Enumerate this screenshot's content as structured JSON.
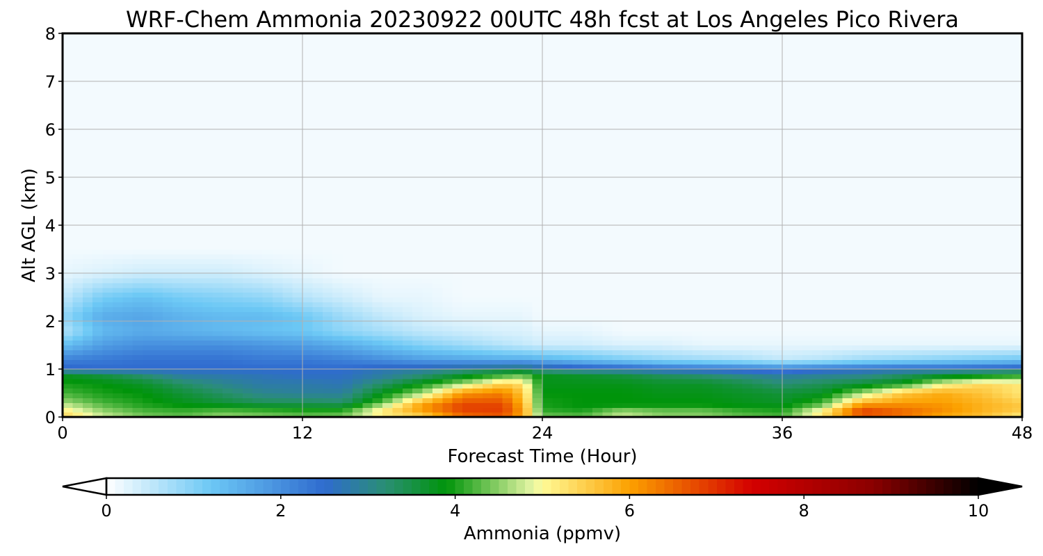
{
  "chart_data": {
    "type": "heatmap",
    "title": "WRF-Chem Ammonia  20230922 00UTC 48h fcst at Los Angeles Pico Rivera",
    "xlabel": "Forecast Time (Hour)",
    "ylabel": "Alt AGL (km)",
    "xlim": [
      0,
      48
    ],
    "ylim": [
      0,
      8
    ],
    "xticks": [
      0,
      12,
      24,
      36,
      48
    ],
    "yticks": [
      0,
      1,
      2,
      3,
      4,
      5,
      6,
      7,
      8
    ],
    "grid": true,
    "colorbar": {
      "label": "Ammonia  (ppmv)",
      "range": [
        0,
        10
      ],
      "ticks": [
        0,
        2,
        4,
        6,
        8,
        10
      ],
      "extend": "both",
      "stops": [
        {
          "v": 0.0,
          "c": "#ffffff"
        },
        {
          "v": 1.2,
          "c": "#6cc8f5"
        },
        {
          "v": 2.5,
          "c": "#2f6bcf"
        },
        {
          "v": 3.2,
          "c": "#2a8f74"
        },
        {
          "v": 3.9,
          "c": "#00940a"
        },
        {
          "v": 4.9,
          "c": "#e9f7a7"
        },
        {
          "v": 5.0,
          "c": "#fffa96"
        },
        {
          "v": 6.0,
          "c": "#fca100"
        },
        {
          "v": 7.4,
          "c": "#d40000"
        },
        {
          "v": 8.8,
          "c": "#8a0000"
        },
        {
          "v": 10.0,
          "c": "#000000"
        }
      ]
    },
    "hours": [
      0,
      2,
      4,
      6,
      8,
      10,
      12,
      14,
      16,
      18,
      20,
      22,
      23,
      24,
      26,
      28,
      30,
      32,
      34,
      36,
      38,
      40,
      42,
      44,
      46,
      48
    ],
    "altitudes_km": [
      0,
      0.1,
      0.2,
      0.3,
      0.5,
      0.7,
      0.85,
      1.0,
      1.2,
      1.5,
      1.8,
      2.1,
      2.5,
      3.0,
      3.5,
      8.0
    ],
    "values": [
      [
        5.5,
        4.8,
        4.4,
        4.3,
        4.5,
        4.4,
        4.3,
        4.4,
        5.1,
        5.4,
        6.4,
        6.6,
        5.9,
        4.4,
        4.3,
        4.5,
        4.3,
        4.3,
        4.2,
        4.2,
        5.0,
        6.5,
        6.4,
        5.9,
        5.6,
        5.1
      ],
      [
        5.2,
        4.6,
        4.3,
        4.2,
        4.4,
        4.3,
        4.2,
        4.2,
        5.2,
        5.8,
        6.7,
        6.8,
        6.0,
        4.2,
        4.1,
        4.9,
        4.6,
        4.6,
        4.3,
        4.1,
        5.4,
        6.9,
        6.5,
        6.1,
        5.8,
        5.4
      ],
      [
        5.0,
        4.4,
        4.1,
        4.0,
        4.0,
        3.9,
        3.8,
        3.8,
        5.0,
        6.2,
        6.9,
        6.9,
        6.0,
        4.0,
        3.9,
        4.0,
        4.0,
        4.0,
        3.9,
        3.9,
        4.6,
        6.6,
        6.4,
        6.2,
        5.8,
        5.6
      ],
      [
        4.6,
        4.2,
        4.0,
        3.8,
        3.6,
        3.4,
        3.4,
        3.3,
        4.3,
        5.8,
        6.7,
        6.7,
        5.8,
        4.0,
        3.9,
        3.9,
        3.9,
        3.9,
        3.8,
        3.7,
        4.2,
        5.8,
        6.0,
        6.0,
        5.8,
        5.5
      ],
      [
        4.2,
        4.0,
        3.9,
        3.6,
        3.3,
        3.0,
        2.9,
        2.9,
        3.8,
        4.6,
        6.1,
        6.3,
        5.6,
        3.9,
        3.9,
        3.9,
        3.8,
        3.8,
        3.7,
        3.6,
        3.7,
        4.6,
        5.6,
        5.9,
        5.6,
        5.2
      ],
      [
        4.0,
        3.9,
        3.7,
        3.3,
        3.0,
        2.8,
        2.8,
        2.7,
        3.3,
        3.9,
        4.6,
        5.5,
        5.3,
        3.8,
        3.8,
        3.8,
        3.7,
        3.7,
        3.5,
        3.2,
        3.4,
        3.6,
        3.9,
        4.9,
        5.4,
        5.2
      ],
      [
        3.8,
        3.6,
        3.3,
        2.9,
        2.8,
        2.7,
        2.6,
        2.6,
        2.9,
        3.3,
        3.8,
        4.3,
        4.5,
        3.8,
        3.7,
        3.6,
        3.4,
        3.3,
        3.1,
        2.9,
        3.0,
        3.1,
        3.4,
        3.8,
        4.0,
        4.2
      ],
      [
        2.6,
        2.5,
        2.5,
        2.5,
        2.5,
        2.5,
        2.5,
        2.5,
        2.7,
        2.8,
        3.0,
        3.2,
        3.3,
        3.0,
        2.8,
        2.7,
        2.5,
        2.4,
        2.3,
        2.2,
        2.4,
        2.5,
        2.6,
        2.6,
        2.7,
        2.8
      ],
      [
        2.2,
        2.3,
        2.4,
        2.4,
        2.4,
        2.3,
        2.3,
        2.2,
        2.0,
        1.8,
        1.7,
        1.6,
        1.6,
        1.5,
        1.3,
        1.1,
        0.9,
        0.8,
        0.7,
        0.5,
        0.6,
        0.8,
        0.9,
        1.0,
        1.1,
        1.2
      ],
      [
        1.3,
        1.8,
        2.0,
        2.0,
        2.0,
        1.9,
        1.8,
        1.6,
        1.3,
        1.0,
        0.8,
        0.6,
        0.5,
        0.4,
        0.4,
        0.3,
        0.3,
        0.2,
        0.2,
        0.2,
        0.2,
        0.2,
        0.2,
        0.2,
        0.2,
        0.2
      ],
      [
        0.6,
        1.4,
        1.6,
        1.5,
        1.4,
        1.3,
        1.2,
        0.9,
        0.7,
        0.5,
        0.4,
        0.3,
        0.3,
        0.2,
        0.2,
        0.1,
        0.1,
        0.1,
        0.1,
        0.1,
        0.1,
        0.1,
        0.1,
        0.1,
        0.1,
        0.1
      ],
      [
        0.9,
        1.6,
        1.7,
        1.5,
        1.4,
        1.4,
        1.2,
        0.8,
        0.5,
        0.3,
        0.2,
        0.2,
        0.2,
        0.1,
        0.1,
        0.1,
        0.1,
        0.1,
        0.1,
        0.1,
        0.1,
        0.1,
        0.1,
        0.1,
        0.1,
        0.1
      ],
      [
        0.5,
        1.1,
        1.3,
        1.1,
        1.0,
        0.9,
        0.6,
        0.4,
        0.2,
        0.2,
        0.1,
        0.1,
        0.1,
        0.1,
        0.1,
        0.1,
        0.1,
        0.1,
        0.1,
        0.1,
        0.1,
        0.1,
        0.1,
        0.1,
        0.1,
        0.1
      ],
      [
        0.2,
        0.3,
        0.4,
        0.4,
        0.4,
        0.3,
        0.2,
        0.1,
        0.1,
        0.1,
        0.1,
        0.1,
        0.1,
        0.1,
        0.1,
        0.1,
        0.1,
        0.1,
        0.1,
        0.1,
        0.1,
        0.1,
        0.1,
        0.1,
        0.1,
        0.1
      ],
      [
        0.1,
        0.1,
        0.1,
        0.1,
        0.1,
        0.1,
        0.1,
        0.1,
        0.1,
        0.1,
        0.1,
        0.1,
        0.1,
        0.1,
        0.1,
        0.1,
        0.1,
        0.1,
        0.1,
        0.1,
        0.1,
        0.1,
        0.1,
        0.1,
        0.1,
        0.1
      ],
      [
        0.1,
        0.1,
        0.1,
        0.1,
        0.1,
        0.1,
        0.1,
        0.1,
        0.1,
        0.1,
        0.1,
        0.1,
        0.1,
        0.1,
        0.1,
        0.1,
        0.1,
        0.1,
        0.1,
        0.1,
        0.1,
        0.1,
        0.1,
        0.1,
        0.1,
        0.1
      ]
    ]
  }
}
